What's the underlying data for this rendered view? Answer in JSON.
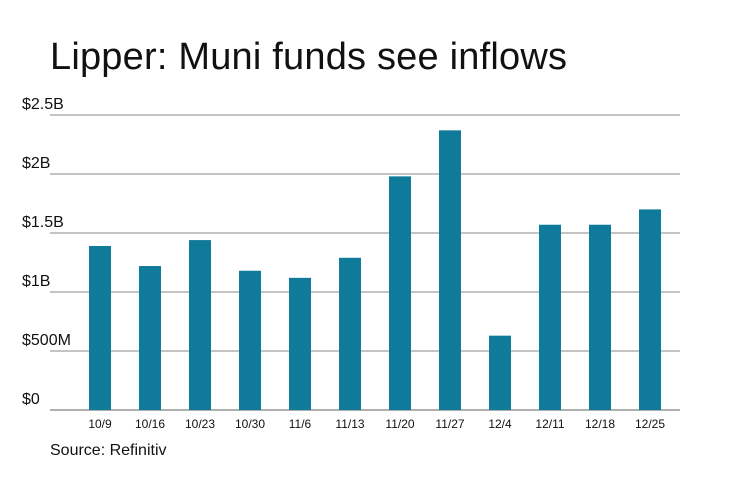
{
  "page": {
    "title": "Lipper: Muni funds see inflows",
    "source": "Source: Refinitiv"
  },
  "chart_data": {
    "type": "bar",
    "categories": [
      "10/9",
      "10/16",
      "10/23",
      "10/30",
      "11/6",
      "11/13",
      "11/20",
      "11/27",
      "12/4",
      "12/11",
      "12/18",
      "12/25"
    ],
    "values": [
      1.39,
      1.22,
      1.44,
      1.18,
      1.12,
      1.29,
      1.98,
      2.37,
      0.63,
      1.57,
      1.57,
      1.7
    ],
    "unit": "billions USD",
    "title": "Lipper: Muni funds see inflows",
    "xlabel": "",
    "ylabel": "",
    "ylim": [
      0,
      2.5
    ],
    "yticks": [
      {
        "value": 0,
        "label": "$0"
      },
      {
        "value": 0.5,
        "label": "$500M"
      },
      {
        "value": 1,
        "label": "$1B"
      },
      {
        "value": 1.5,
        "label": "$1.5B"
      },
      {
        "value": 2,
        "label": "$2B"
      },
      {
        "value": 2.5,
        "label": "$2.5B"
      }
    ],
    "grid": true,
    "legend": "none",
    "bar_color": "#0f7a99"
  }
}
